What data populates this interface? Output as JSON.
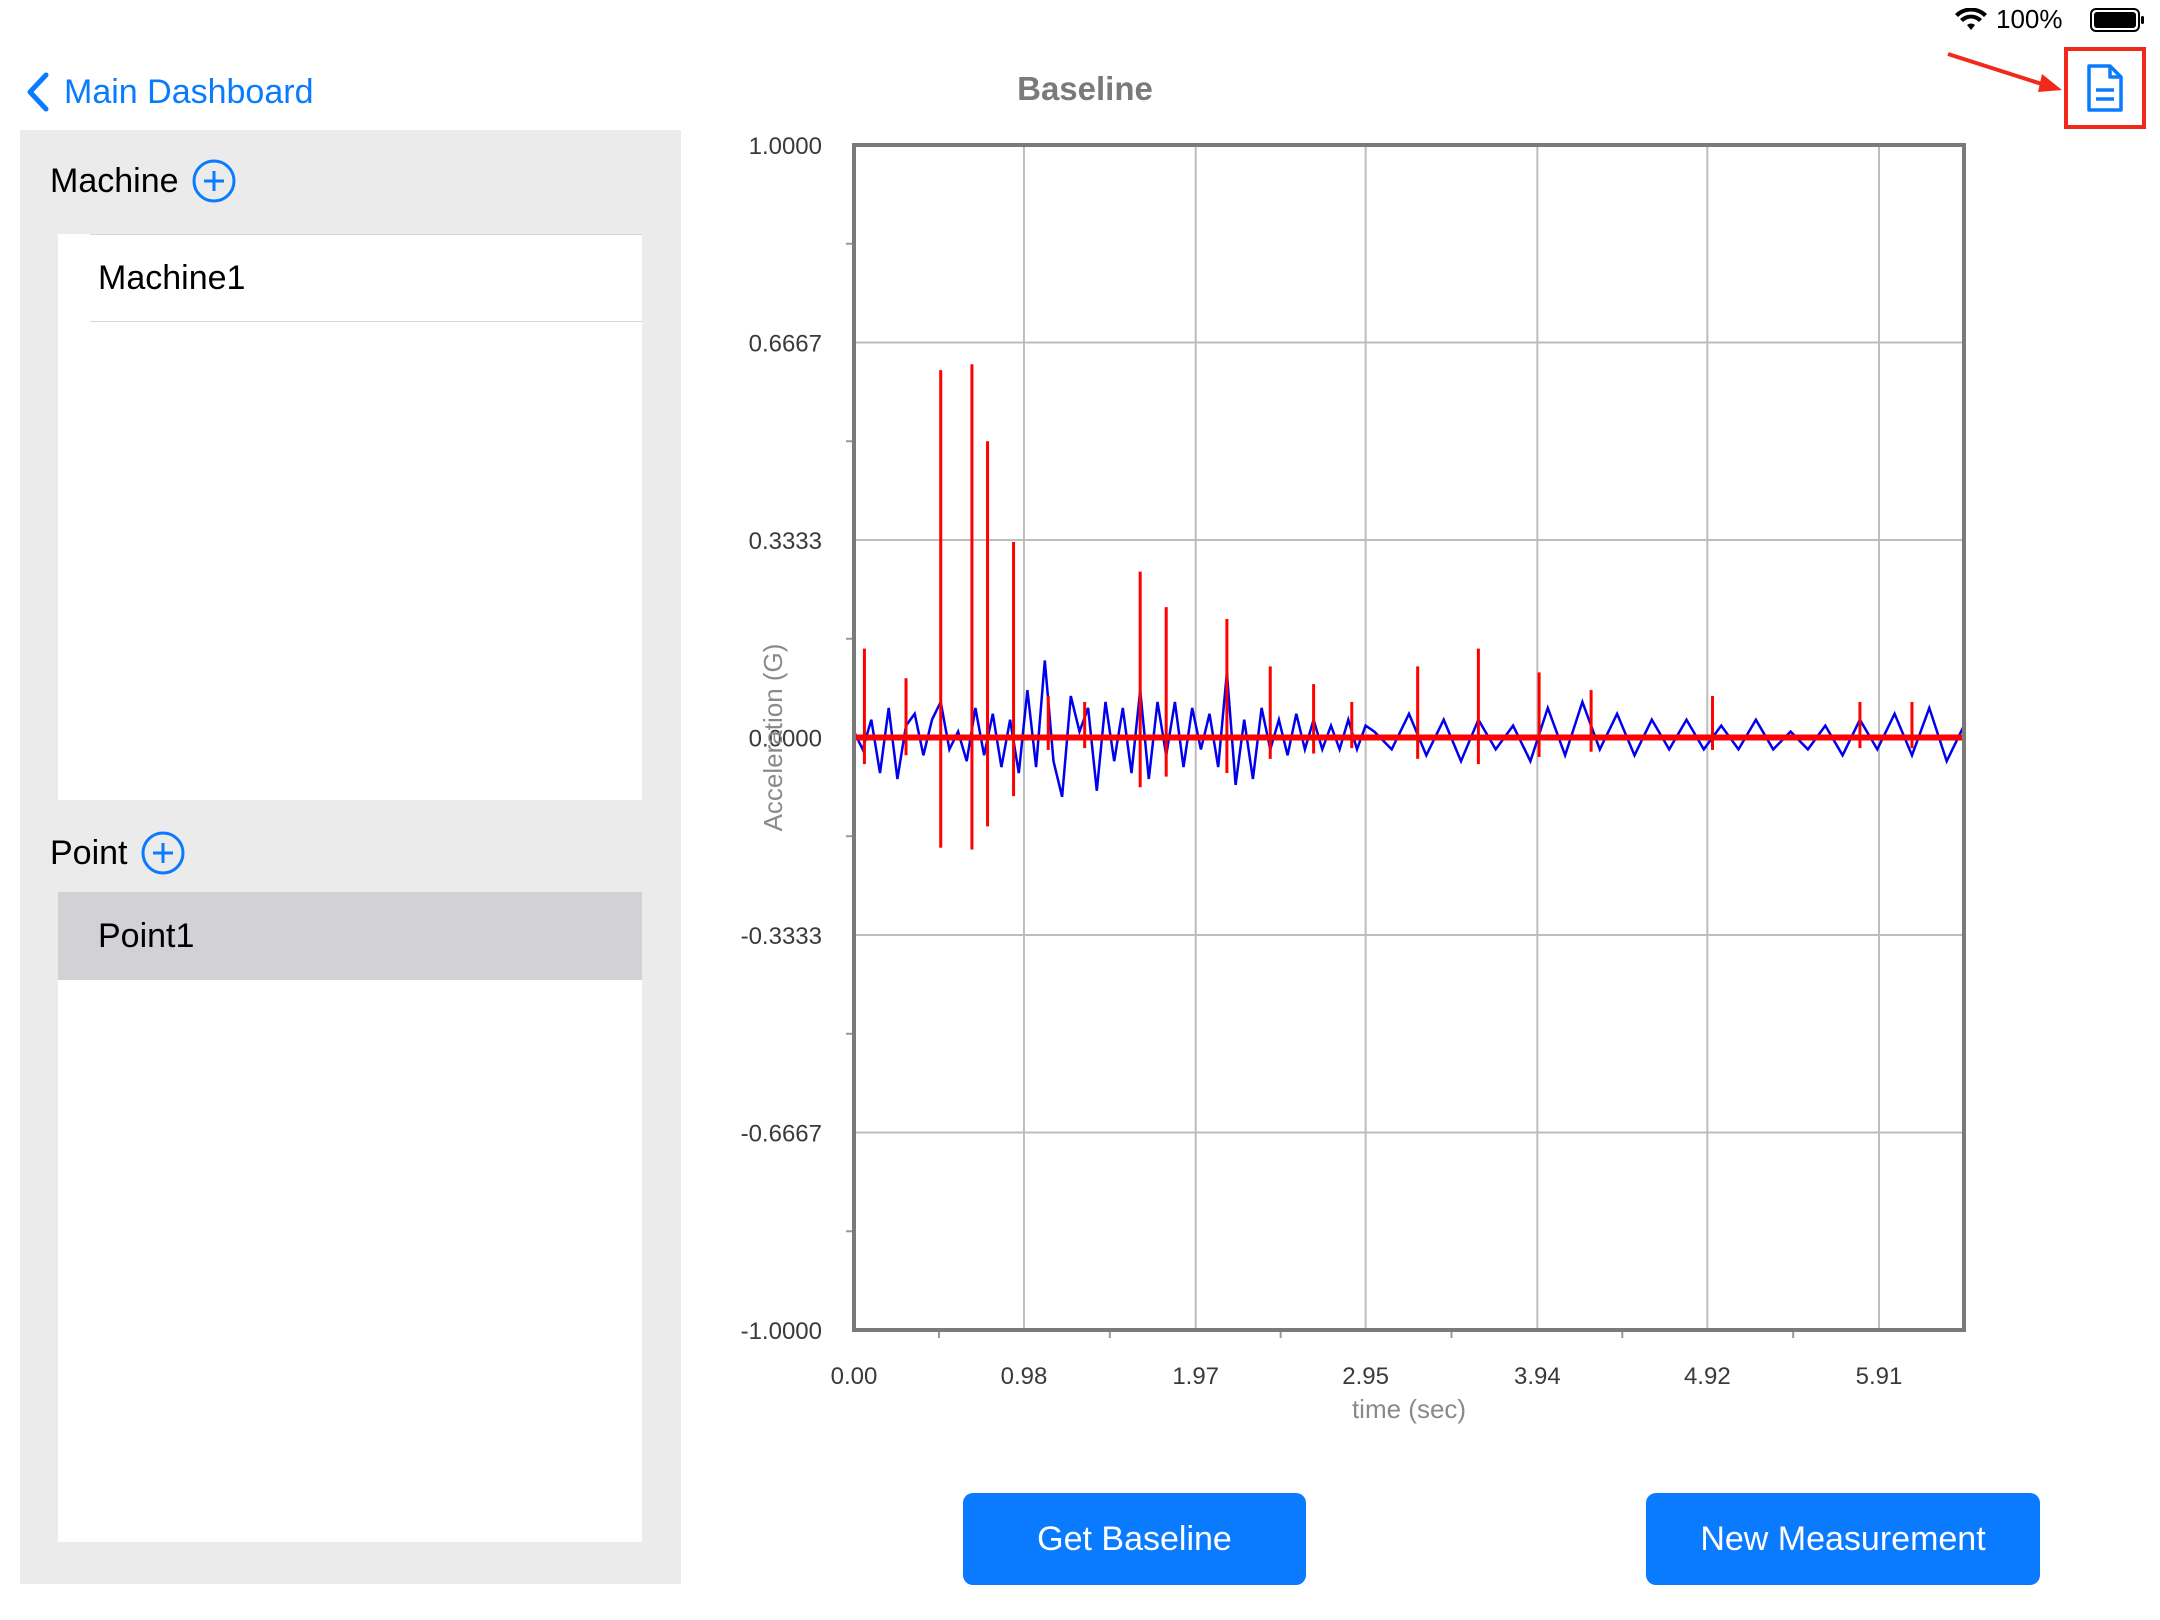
{
  "status_bar": {
    "battery_text": "100%",
    "wifi_icon": "wifi-icon",
    "battery_icon": "battery-full-icon"
  },
  "nav": {
    "back_label": "Main Dashboard",
    "title": "Baseline",
    "report_icon": "document-icon"
  },
  "sidebar": {
    "machine_header": "Machine",
    "machines": [
      {
        "label": "Machine1",
        "selected": false
      }
    ],
    "point_header": "Point",
    "points": [
      {
        "label": "Point1",
        "selected": true
      }
    ]
  },
  "chart_data": {
    "type": "line",
    "title": "",
    "xlabel": "time (sec)",
    "ylabel": "Acceleration (G)",
    "xlim": [
      0,
      6.4
    ],
    "ylim": [
      -1.0,
      1.0
    ],
    "x_ticks": [
      "0.00",
      "0.98",
      "1.97",
      "2.95",
      "3.94",
      "4.92",
      "5.91"
    ],
    "x_tick_values": [
      0.0,
      0.98,
      1.97,
      2.95,
      3.94,
      4.92,
      5.91
    ],
    "y_ticks": [
      "1.0000",
      "0.6667",
      "0.3333",
      "0.0000",
      "-0.3333",
      "-0.6667",
      "-1.0000"
    ],
    "y_tick_values": [
      1.0,
      0.6667,
      0.3333,
      0.0,
      -0.3333,
      -0.6667,
      -1.0
    ],
    "grid": true,
    "series": [
      {
        "color": "#0000ee",
        "x": [
          0.0,
          0.05,
          0.1,
          0.15,
          0.2,
          0.25,
          0.3,
          0.35,
          0.4,
          0.45,
          0.5,
          0.55,
          0.6,
          0.65,
          0.7,
          0.75,
          0.8,
          0.85,
          0.9,
          0.95,
          1.0,
          1.05,
          1.1,
          1.15,
          1.2,
          1.25,
          1.3,
          1.35,
          1.4,
          1.45,
          1.5,
          1.55,
          1.6,
          1.65,
          1.7,
          1.75,
          1.8,
          1.85,
          1.9,
          1.95,
          2.0,
          2.05,
          2.1,
          2.15,
          2.2,
          2.25,
          2.3,
          2.35,
          2.4,
          2.45,
          2.5,
          2.55,
          2.6,
          2.65,
          2.7,
          2.75,
          2.8,
          2.85,
          2.9,
          2.95,
          3.0,
          3.1,
          3.2,
          3.3,
          3.4,
          3.5,
          3.6,
          3.7,
          3.8,
          3.9,
          4.0,
          4.1,
          4.2,
          4.3,
          4.4,
          4.5,
          4.6,
          4.7,
          4.8,
          4.9,
          5.0,
          5.1,
          5.2,
          5.3,
          5.4,
          5.5,
          5.6,
          5.7,
          5.8,
          5.9,
          6.0,
          6.1,
          6.2,
          6.3,
          6.4
        ],
        "y": [
          0.01,
          -0.02,
          0.03,
          -0.06,
          0.05,
          -0.07,
          0.02,
          0.04,
          -0.03,
          0.03,
          0.06,
          -0.02,
          0.01,
          -0.04,
          0.05,
          -0.03,
          0.04,
          -0.05,
          0.03,
          -0.06,
          0.08,
          -0.05,
          0.13,
          -0.04,
          -0.1,
          0.07,
          0.01,
          0.05,
          -0.09,
          0.06,
          -0.04,
          0.05,
          -0.06,
          0.08,
          -0.07,
          0.06,
          -0.03,
          0.06,
          -0.05,
          0.05,
          -0.02,
          0.04,
          -0.05,
          0.11,
          -0.08,
          0.03,
          -0.07,
          0.05,
          -0.02,
          0.03,
          -0.03,
          0.04,
          -0.02,
          0.03,
          -0.02,
          0.02,
          -0.02,
          0.03,
          -0.02,
          0.02,
          0.01,
          -0.02,
          0.04,
          -0.03,
          0.03,
          -0.04,
          0.03,
          -0.02,
          0.02,
          -0.04,
          0.05,
          -0.03,
          0.06,
          -0.02,
          0.04,
          -0.03,
          0.03,
          -0.02,
          0.03,
          -0.02,
          0.02,
          -0.02,
          0.03,
          -0.02,
          0.01,
          -0.02,
          0.02,
          -0.03,
          0.03,
          -0.02,
          0.04,
          -0.03,
          0.05,
          -0.04,
          0.02
        ]
      },
      {
        "color": "#ff0000",
        "x": [
          0.06,
          0.3,
          0.5,
          0.68,
          0.77,
          0.92,
          1.12,
          1.33,
          1.65,
          1.8,
          2.15,
          2.4,
          2.65,
          2.87,
          3.25,
          3.6,
          3.95,
          4.25,
          4.95,
          5.8,
          6.1
        ],
        "y": [
          0.15,
          0.1,
          0.62,
          0.63,
          0.5,
          0.33,
          0.07,
          0.06,
          0.28,
          0.22,
          0.2,
          0.12,
          0.09,
          0.06,
          0.12,
          0.15,
          0.11,
          0.08,
          0.07,
          0.06,
          0.06
        ]
      }
    ]
  },
  "buttons": {
    "get_baseline": "Get Baseline",
    "new_measurement": "New Measurement"
  }
}
